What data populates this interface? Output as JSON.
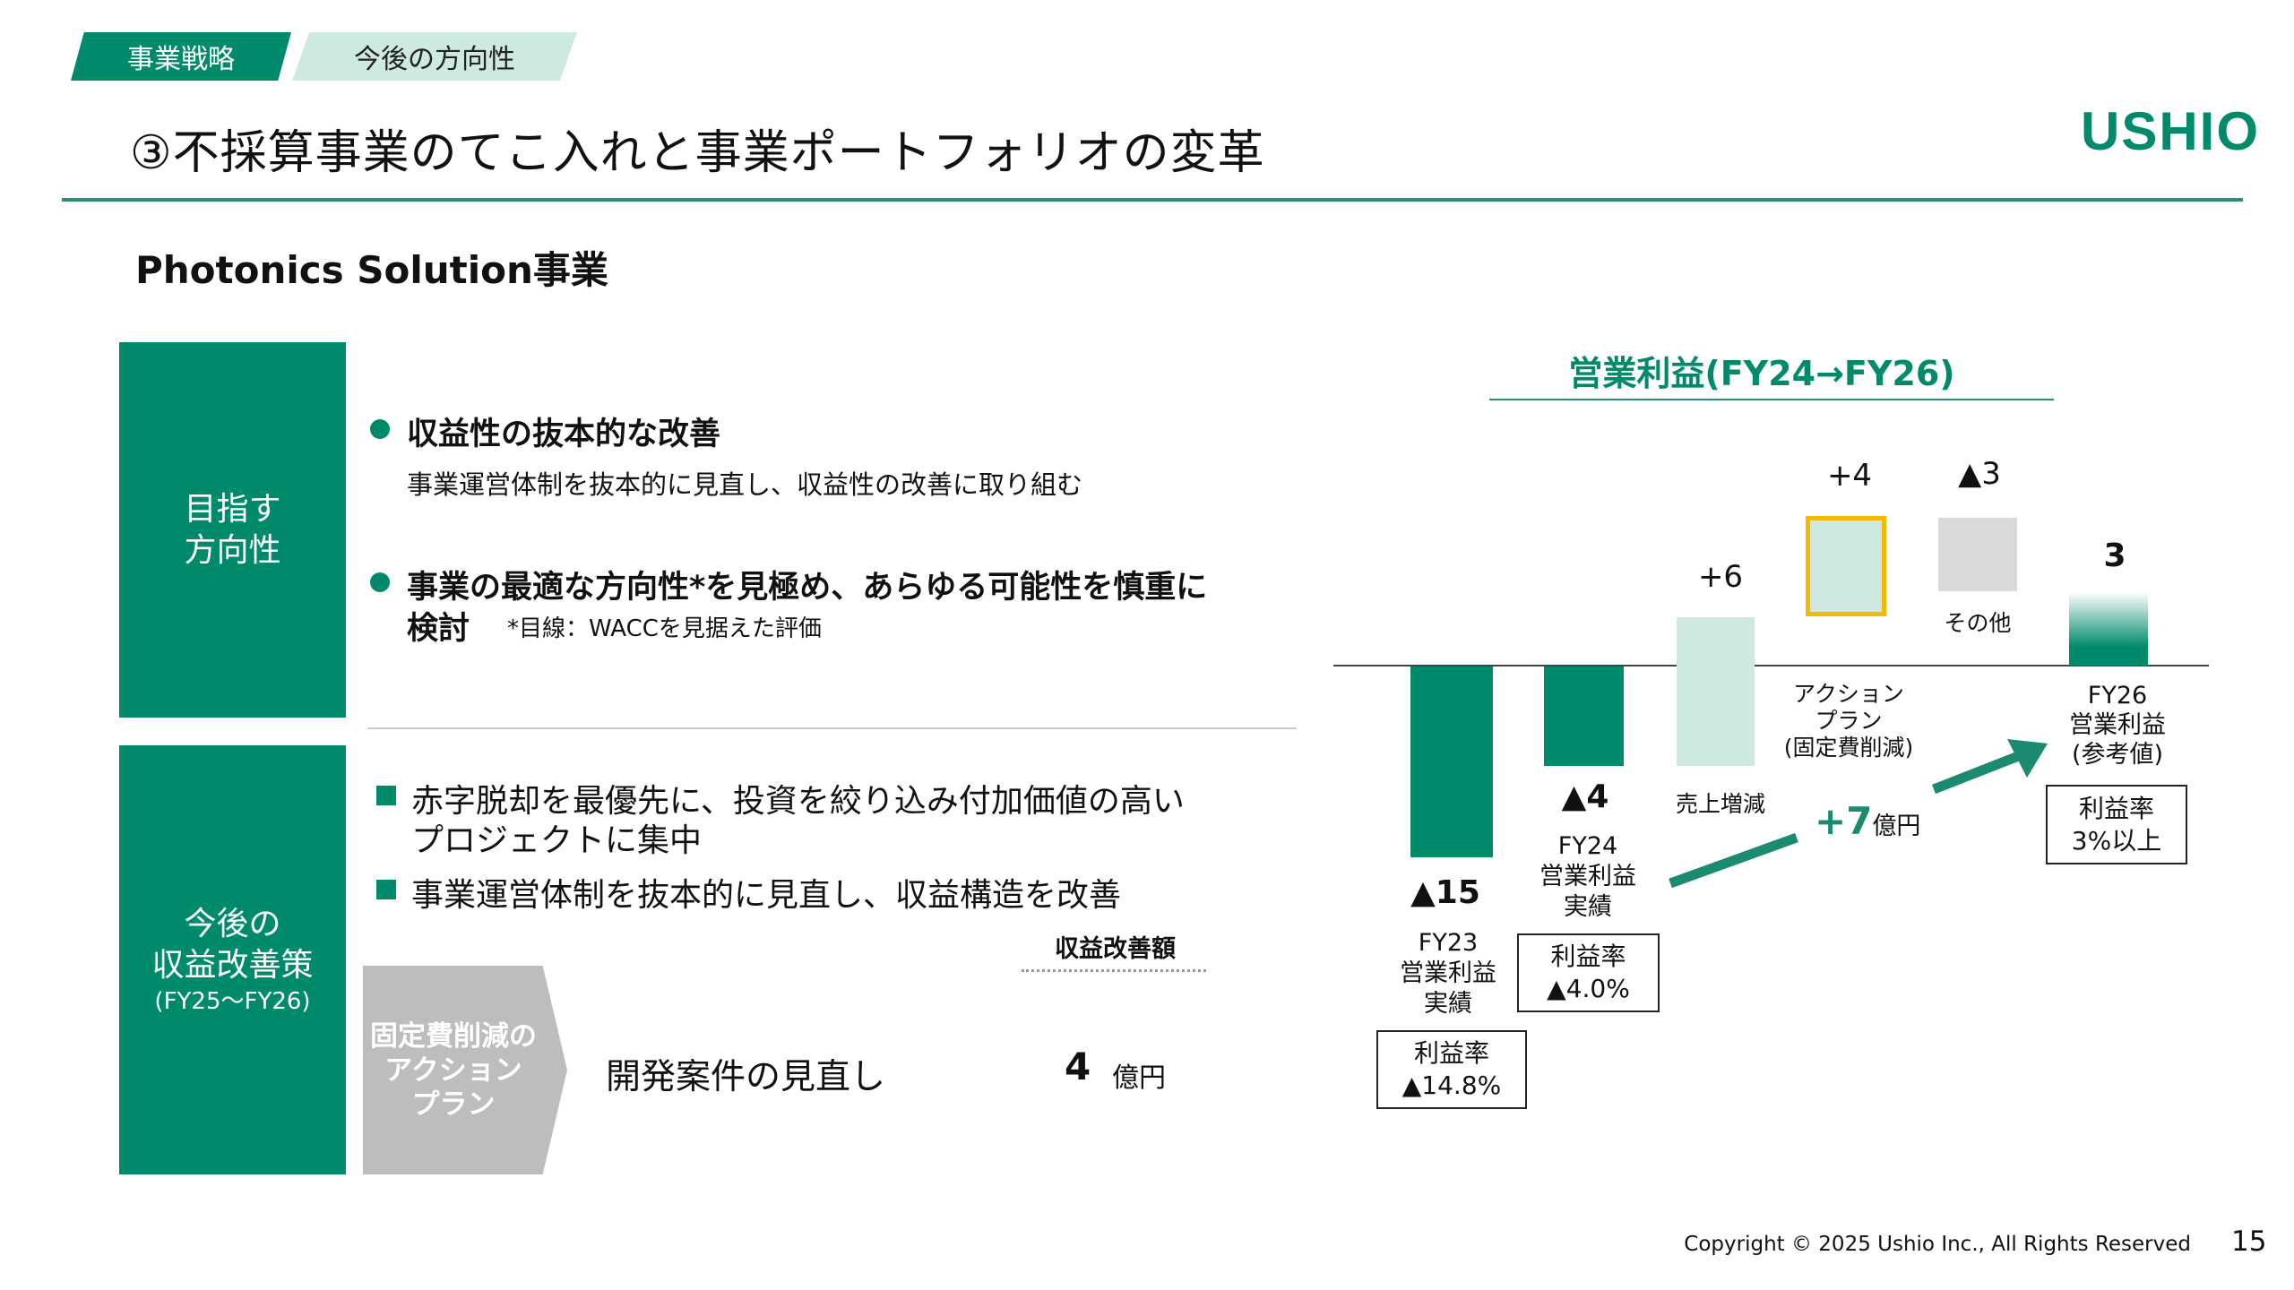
{
  "header": {
    "tabs": [
      "事業戦略",
      "今後の方向性"
    ],
    "title": "③不採算事業のてこ入れと事業ポートフォリオの変革",
    "logo": "USHIO",
    "accent": "#008a6c"
  },
  "section_title": "Photonics Solution事業",
  "direction": {
    "label_lines": [
      "目指す",
      "方向性"
    ],
    "bullets": [
      {
        "heading": "収益性の抜本的な改善",
        "text": "事業運営体制を抜本的に見直し、収益性の改善に取り組む"
      },
      {
        "heading_line1": "事業の最適な方向性*を見極め、あらゆる可能性を慎重に",
        "heading_line2": "検討",
        "note": "*目線：WACCを見据えた評価"
      }
    ]
  },
  "measures": {
    "label_lines": [
      "今後の",
      "収益改善策",
      "(FY25～FY26)"
    ],
    "items": [
      {
        "line1": "赤字脱却を最優先に、投資を絞り込み付加価値の高い",
        "line2": "プロジェクトに集中"
      },
      {
        "line1": "事業運営体制を抜本的に見直し、収益構造を改善"
      }
    ],
    "column_header": "収益改善額",
    "plan_lines": [
      "固定費削減の",
      "アクション",
      "プラン"
    ],
    "plan_item": "開発案件の見直し",
    "amount": "4",
    "amount_unit": "億円"
  },
  "chart_data": {
    "type": "bar",
    "title": "営業利益(FY24→FY26)",
    "categories": [
      "FY23 営業利益 実績",
      "FY24 営業利益 実績",
      "売上増減",
      "アクションプラン(固定費削減)",
      "その他",
      "FY26 営業利益(参考値)"
    ],
    "values": [
      -15,
      -4,
      6,
      4,
      -3,
      3
    ],
    "value_labels": [
      "▲15",
      "▲4",
      "+6",
      "+4",
      "▲3",
      "3"
    ],
    "label_lines": [
      [
        "FY23",
        "営業利益",
        "実績"
      ],
      [
        "FY24",
        "営業利益",
        "実績"
      ],
      [
        "売上増減"
      ],
      [
        "アクション",
        "プラン",
        "(固定費削減)"
      ],
      [
        "その他"
      ],
      [
        "FY26",
        "営業利益",
        "(参考値)"
      ]
    ],
    "margins": [
      [
        "利益率",
        "▲14.8%"
      ],
      [
        "利益率",
        "▲4.0%"
      ],
      [
        "利益率",
        "3%以上"
      ]
    ],
    "improvement_value": "+7",
    "improvement_unit": "億円",
    "colors": {
      "actual": "#008a6c",
      "increase": "#cde9e1",
      "other": "#d9d9d9",
      "highlight": "#f5b800"
    }
  },
  "footer": {
    "copyright": "Copyright © 2025 Ushio Inc., All Rights Reserved",
    "page": "15"
  }
}
